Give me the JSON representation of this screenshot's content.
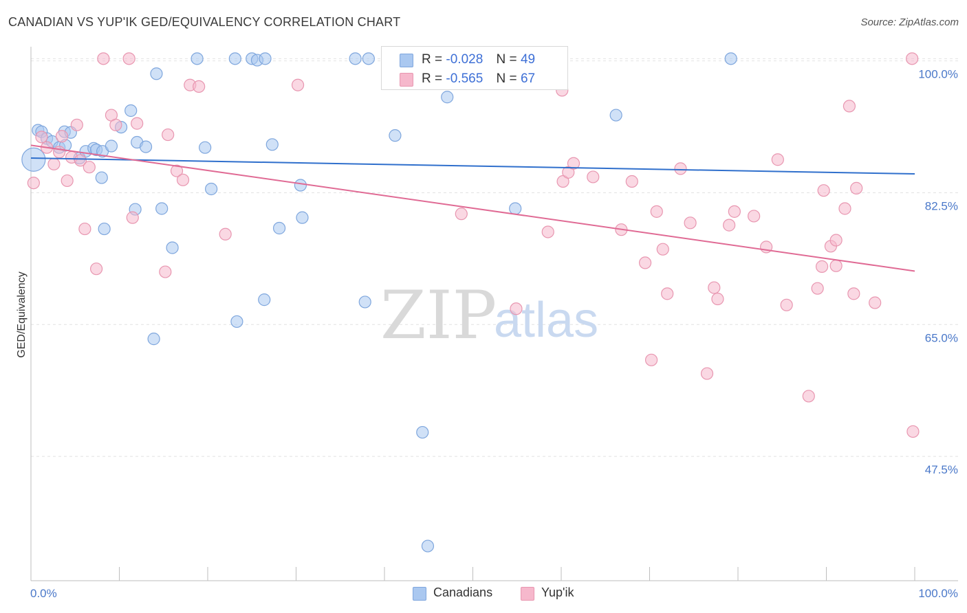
{
  "title": "CANADIAN VS YUP'IK GED/EQUIVALENCY CORRELATION CHART",
  "source": "Source: ZipAtlas.com",
  "watermark": {
    "zip": "ZIP",
    "atlas": "atlas"
  },
  "legend": {
    "r_label": "R =",
    "n_label": "N =",
    "rows": [
      {
        "r": "-0.028",
        "n": "49"
      },
      {
        "r": "-0.565",
        "n": "67"
      }
    ]
  },
  "bottom_legend": [
    "Canadians",
    "Yup'ik"
  ],
  "colors": {
    "blue_fill": "#aac8f0",
    "blue_stroke": "#7ea6dd",
    "blue_line": "#2f6fcc",
    "pink_fill": "#f6b8cc",
    "pink_stroke": "#e896b0",
    "pink_line": "#e06a94",
    "tick_text": "#4a78c9",
    "grid": "#e2e2e2"
  },
  "chart_data": {
    "type": "scatter",
    "title": "CANADIAN VS YUP'IK GED/EQUIVALENCY CORRELATION CHART",
    "xlabel": "",
    "ylabel": "GED/Equivalency",
    "xlim": [
      0,
      100
    ],
    "ylim": [
      31,
      101.7
    ],
    "x_tick_labels": [
      {
        "value": 0,
        "label": "0.0%"
      },
      {
        "value": 100,
        "label": "100.0%"
      }
    ],
    "x_minor_ticks": [
      10,
      20,
      30,
      40,
      50,
      60,
      70,
      80,
      90
    ],
    "y_ticks": [
      {
        "value": 100,
        "label": "100.0%"
      },
      {
        "value": 82.5,
        "label": "82.5%"
      },
      {
        "value": 65,
        "label": "65.0%"
      },
      {
        "value": 47.5,
        "label": "47.5%"
      }
    ],
    "grid": true,
    "legend_position": "top-center",
    "series": [
      {
        "name": "Canadians",
        "r": -0.028,
        "n": 49,
        "trend": {
          "x": [
            0,
            100
          ],
          "y": [
            87.1,
            85.0
          ]
        },
        "points": [
          {
            "x": 0.3,
            "y": 86.9,
            "big": true
          },
          {
            "x": 0.8,
            "y": 90.8
          },
          {
            "x": 1.2,
            "y": 90.6
          },
          {
            "x": 1.8,
            "y": 89.7
          },
          {
            "x": 2.4,
            "y": 89.3
          },
          {
            "x": 3.2,
            "y": 88.5
          },
          {
            "x": 3.8,
            "y": 90.6
          },
          {
            "x": 4.5,
            "y": 90.5
          },
          {
            "x": 3.9,
            "y": 88.8
          },
          {
            "x": 5.5,
            "y": 87.1
          },
          {
            "x": 6.2,
            "y": 88.0
          },
          {
            "x": 7.1,
            "y": 88.4
          },
          {
            "x": 7.4,
            "y": 88.2
          },
          {
            "x": 8.1,
            "y": 88.0
          },
          {
            "x": 9.1,
            "y": 88.7
          },
          {
            "x": 10.2,
            "y": 91.2
          },
          {
            "x": 11.3,
            "y": 93.4
          },
          {
            "x": 12.0,
            "y": 89.2
          },
          {
            "x": 13.0,
            "y": 88.6
          },
          {
            "x": 14.2,
            "y": 98.3
          },
          {
            "x": 8.0,
            "y": 84.5
          },
          {
            "x": 8.3,
            "y": 77.7
          },
          {
            "x": 11.8,
            "y": 80.3
          },
          {
            "x": 14.8,
            "y": 80.4
          },
          {
            "x": 16.0,
            "y": 75.2
          },
          {
            "x": 18.8,
            "y": 100.3
          },
          {
            "x": 19.7,
            "y": 88.5
          },
          {
            "x": 20.4,
            "y": 83.0
          },
          {
            "x": 23.1,
            "y": 100.3
          },
          {
            "x": 25.0,
            "y": 100.3
          },
          {
            "x": 25.6,
            "y": 100.1
          },
          {
            "x": 26.5,
            "y": 100.3
          },
          {
            "x": 27.3,
            "y": 88.9
          },
          {
            "x": 28.1,
            "y": 77.8
          },
          {
            "x": 30.5,
            "y": 83.5
          },
          {
            "x": 30.7,
            "y": 79.2
          },
          {
            "x": 36.7,
            "y": 100.3
          },
          {
            "x": 38.2,
            "y": 100.3
          },
          {
            "x": 23.3,
            "y": 65.4
          },
          {
            "x": 26.4,
            "y": 68.3
          },
          {
            "x": 37.8,
            "y": 68.0
          },
          {
            "x": 13.9,
            "y": 63.1
          },
          {
            "x": 41.2,
            "y": 90.1
          },
          {
            "x": 47.1,
            "y": 95.2
          },
          {
            "x": 54.8,
            "y": 80.4
          },
          {
            "x": 58.0,
            "y": 100.3
          },
          {
            "x": 66.2,
            "y": 92.8
          },
          {
            "x": 79.2,
            "y": 100.3
          },
          {
            "x": 44.3,
            "y": 50.7
          },
          {
            "x": 44.9,
            "y": 35.6
          }
        ]
      },
      {
        "name": "Yup'ik",
        "r": -0.565,
        "n": 67,
        "trend": {
          "x": [
            0,
            100
          ],
          "y": [
            88.8,
            72.1
          ]
        },
        "points": [
          {
            "x": 0.3,
            "y": 83.8
          },
          {
            "x": 1.2,
            "y": 89.9
          },
          {
            "x": 1.8,
            "y": 88.5
          },
          {
            "x": 2.6,
            "y": 86.3
          },
          {
            "x": 3.2,
            "y": 87.9
          },
          {
            "x": 3.5,
            "y": 90.0
          },
          {
            "x": 4.1,
            "y": 84.1
          },
          {
            "x": 4.6,
            "y": 87.2
          },
          {
            "x": 5.2,
            "y": 91.5
          },
          {
            "x": 5.6,
            "y": 86.8
          },
          {
            "x": 6.1,
            "y": 77.7
          },
          {
            "x": 6.6,
            "y": 85.9
          },
          {
            "x": 7.4,
            "y": 72.4
          },
          {
            "x": 8.2,
            "y": 100.3
          },
          {
            "x": 9.1,
            "y": 92.8
          },
          {
            "x": 9.6,
            "y": 91.5
          },
          {
            "x": 11.1,
            "y": 100.3
          },
          {
            "x": 11.5,
            "y": 79.2
          },
          {
            "x": 12.0,
            "y": 91.7
          },
          {
            "x": 15.2,
            "y": 72.0
          },
          {
            "x": 15.5,
            "y": 90.2
          },
          {
            "x": 16.5,
            "y": 85.4
          },
          {
            "x": 17.2,
            "y": 84.2
          },
          {
            "x": 18.0,
            "y": 96.8
          },
          {
            "x": 19.0,
            "y": 96.6
          },
          {
            "x": 22.0,
            "y": 77.0
          },
          {
            "x": 30.2,
            "y": 96.8
          },
          {
            "x": 48.7,
            "y": 79.7
          },
          {
            "x": 54.9,
            "y": 67.1
          },
          {
            "x": 58.5,
            "y": 77.3
          },
          {
            "x": 60.1,
            "y": 96.1
          },
          {
            "x": 60.2,
            "y": 84.0
          },
          {
            "x": 60.8,
            "y": 85.2
          },
          {
            "x": 61.4,
            "y": 86.4
          },
          {
            "x": 63.6,
            "y": 84.6
          },
          {
            "x": 66.8,
            "y": 77.6
          },
          {
            "x": 68.0,
            "y": 84.0
          },
          {
            "x": 69.5,
            "y": 73.2
          },
          {
            "x": 70.2,
            "y": 60.3
          },
          {
            "x": 70.8,
            "y": 80.0
          },
          {
            "x": 71.5,
            "y": 75.0
          },
          {
            "x": 72.0,
            "y": 69.1
          },
          {
            "x": 73.5,
            "y": 85.7
          },
          {
            "x": 74.6,
            "y": 78.5
          },
          {
            "x": 76.5,
            "y": 58.5
          },
          {
            "x": 77.3,
            "y": 69.9
          },
          {
            "x": 77.7,
            "y": 68.4
          },
          {
            "x": 79.0,
            "y": 78.2
          },
          {
            "x": 79.6,
            "y": 80.0
          },
          {
            "x": 81.8,
            "y": 79.4
          },
          {
            "x": 83.2,
            "y": 75.3
          },
          {
            "x": 84.5,
            "y": 86.9
          },
          {
            "x": 85.5,
            "y": 67.6
          },
          {
            "x": 88.0,
            "y": 55.5
          },
          {
            "x": 89.0,
            "y": 69.8
          },
          {
            "x": 89.5,
            "y": 72.7
          },
          {
            "x": 89.7,
            "y": 82.8
          },
          {
            "x": 90.5,
            "y": 75.4
          },
          {
            "x": 91.1,
            "y": 76.2
          },
          {
            "x": 91.1,
            "y": 72.8
          },
          {
            "x": 92.1,
            "y": 80.4
          },
          {
            "x": 92.6,
            "y": 94.0
          },
          {
            "x": 93.1,
            "y": 69.1
          },
          {
            "x": 93.4,
            "y": 83.1
          },
          {
            "x": 95.5,
            "y": 67.9
          },
          {
            "x": 99.8,
            "y": 50.8
          },
          {
            "x": 99.7,
            "y": 100.3
          }
        ]
      }
    ]
  }
}
